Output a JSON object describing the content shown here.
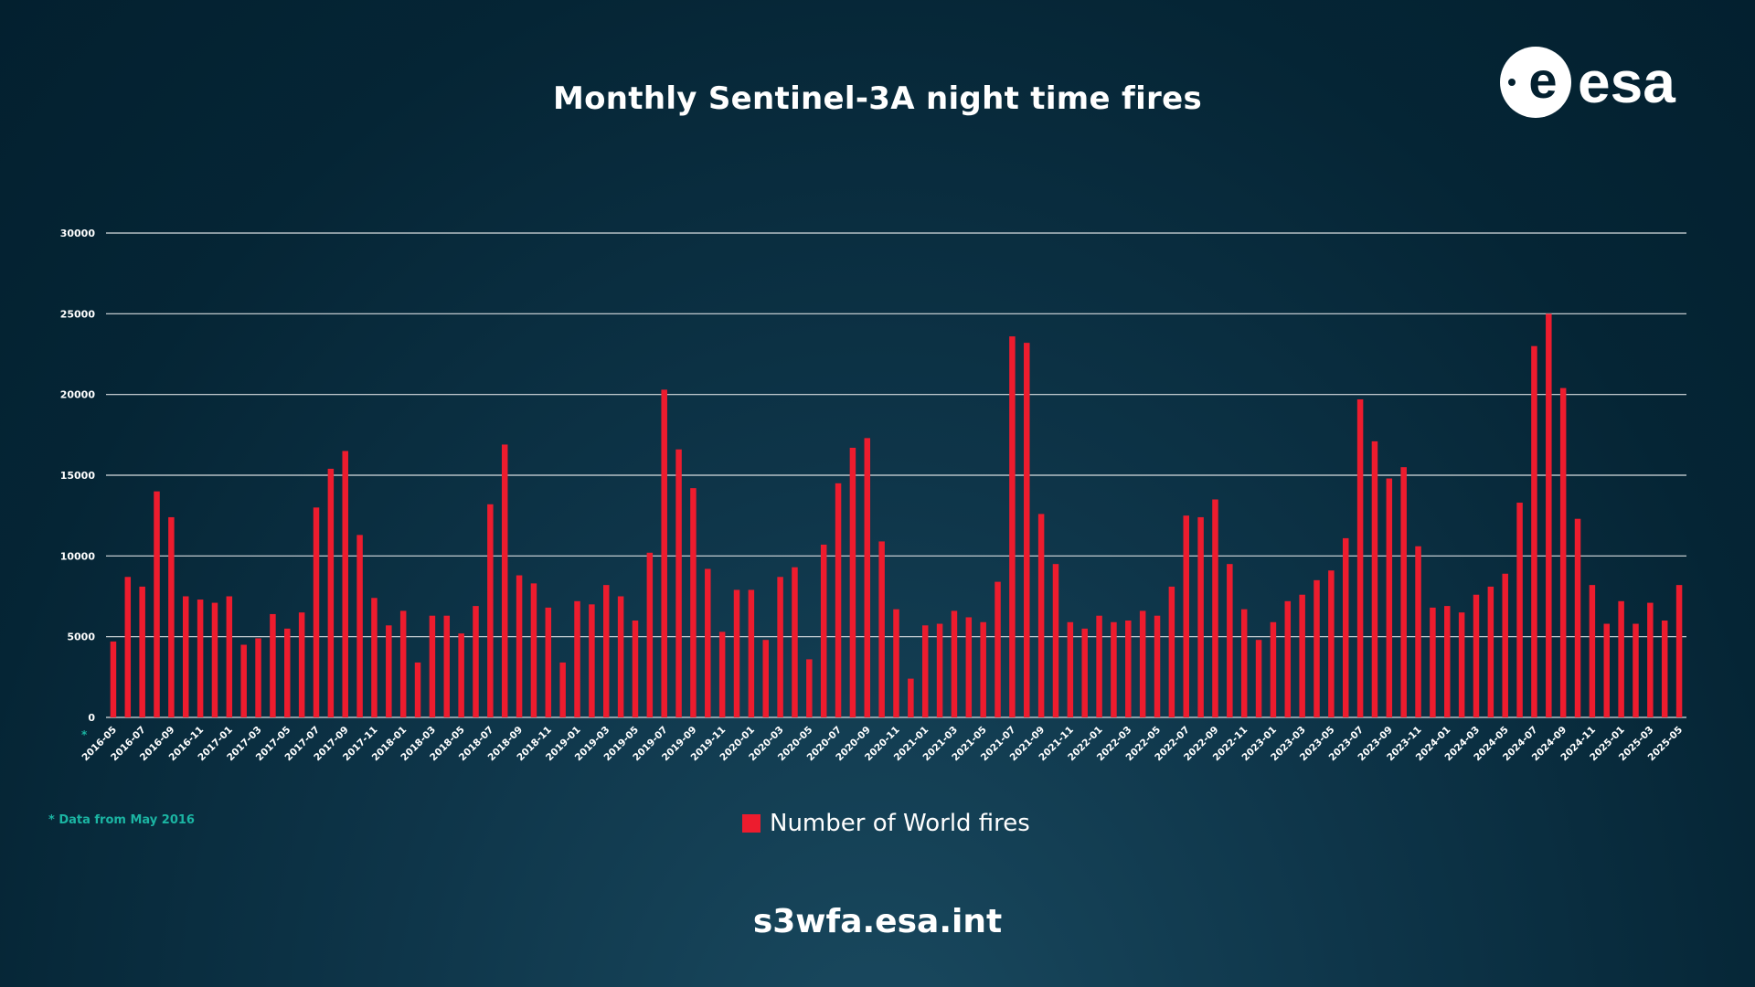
{
  "title": "Monthly Sentinel-3A night time fires",
  "logo": {
    "text": "esa"
  },
  "note": "* Data from May 2016",
  "footer": "s3wfa.esa.int",
  "colors": {
    "bar": "#ed1c2e",
    "grid": "#d8dde0",
    "note": "#1bb5a3",
    "background": "#052535"
  },
  "chart_data": {
    "type": "bar",
    "title": "Monthly Sentinel-3A night time fires",
    "xlabel": "",
    "ylabel": "",
    "ylim": [
      0,
      30000
    ],
    "yticks": [
      0,
      5000,
      10000,
      15000,
      20000,
      25000,
      30000
    ],
    "grid": true,
    "legend_position": "bottom-center",
    "categories": [
      "2016-05",
      "2016-06",
      "2016-07",
      "2016-08",
      "2016-09",
      "2016-10",
      "2016-11",
      "2016-12",
      "2017-01",
      "2017-02",
      "2017-03",
      "2017-04",
      "2017-05",
      "2017-06",
      "2017-07",
      "2017-08",
      "2017-09",
      "2017-10",
      "2017-11",
      "2017-12",
      "2018-01",
      "2018-02",
      "2018-03",
      "2018-04",
      "2018-05",
      "2018-06",
      "2018-07",
      "2018-08",
      "2018-09",
      "2018-10",
      "2018-11",
      "2018-12",
      "2019-01",
      "2019-02",
      "2019-03",
      "2019-04",
      "2019-05",
      "2019-06",
      "2019-07",
      "2019-08",
      "2019-09",
      "2019-10",
      "2019-11",
      "2019-12",
      "2020-01",
      "2020-02",
      "2020-03",
      "2020-04",
      "2020-05",
      "2020-06",
      "2020-07",
      "2020-08",
      "2020-09",
      "2020-10",
      "2020-11",
      "2020-12",
      "2021-01",
      "2021-02",
      "2021-03",
      "2021-04",
      "2021-05",
      "2021-06",
      "2021-07",
      "2021-08",
      "2021-09",
      "2021-10",
      "2021-11",
      "2021-12",
      "2022-01",
      "2022-02",
      "2022-03",
      "2022-04",
      "2022-05",
      "2022-06",
      "2022-07",
      "2022-08",
      "2022-09",
      "2022-10",
      "2022-11",
      "2022-12",
      "2023-01",
      "2023-02",
      "2023-03",
      "2023-04",
      "2023-05",
      "2023-06",
      "2023-07",
      "2023-08",
      "2023-09",
      "2023-10",
      "2023-11",
      "2023-12",
      "2024-01",
      "2024-02",
      "2024-03",
      "2024-04",
      "2024-05",
      "2024-06",
      "2024-07",
      "2024-08",
      "2024-09",
      "2024-10",
      "2024-11",
      "2024-12",
      "2025-01",
      "2025-02",
      "2025-03",
      "2025-04",
      "2025-05"
    ],
    "tick_labels": [
      "2016-05",
      "2016-07",
      "2016-09",
      "2016-11",
      "2017-01",
      "2017-03",
      "2017-05",
      "2017-07",
      "2017-09",
      "2017-11",
      "2018-01",
      "2018-03",
      "2018-05",
      "2018-07",
      "2018-09",
      "2018-11",
      "2019-01",
      "2019-03",
      "2019-05",
      "2019-07",
      "2019-09",
      "2019-11",
      "2020-01",
      "2020-03",
      "2020-05",
      "2020-07",
      "2020-09",
      "2020-11",
      "2021-01",
      "2021-03",
      "2021-05",
      "2021-07",
      "2021-09",
      "2021-11",
      "2022-01",
      "2022-03",
      "2022-05",
      "2022-07",
      "2022-09",
      "2022-11",
      "2023-01",
      "2023-03",
      "2023-05",
      "2023-07",
      "2023-09",
      "2023-11",
      "2024-01",
      "2024-03",
      "2024-05",
      "2024-07",
      "2024-09",
      "2024-11",
      "2025-01",
      "2025-03",
      "2025-05"
    ],
    "series": [
      {
        "name": "Number of World fires",
        "values": [
          4700,
          8700,
          8100,
          14000,
          12400,
          7500,
          7300,
          7100,
          7500,
          4500,
          4900,
          6400,
          5500,
          6500,
          13000,
          15400,
          16500,
          11300,
          7400,
          5700,
          6600,
          3400,
          6300,
          6300,
          5200,
          6900,
          13200,
          16900,
          8800,
          8300,
          6800,
          3400,
          7200,
          7000,
          8200,
          7500,
          6000,
          10200,
          20300,
          16600,
          14200,
          9200,
          5300,
          7900,
          7900,
          4800,
          8700,
          9300,
          3600,
          10700,
          14500,
          16700,
          17300,
          10900,
          6700,
          2400,
          5700,
          5800,
          6600,
          6200,
          5900,
          8400,
          23600,
          23200,
          12600,
          9500,
          5900,
          5500,
          6300,
          5900,
          6000,
          6600,
          6300,
          8100,
          12500,
          12400,
          13500,
          9500,
          6700,
          4800,
          5900,
          7200,
          7600,
          8500,
          9100,
          11100,
          19700,
          17100,
          14800,
          15500,
          10600,
          6800,
          6900,
          6500,
          7600,
          8100,
          8900,
          13300,
          23000,
          25000,
          20400,
          12300,
          8200,
          5800,
          7200,
          5800,
          7100,
          6000,
          8200
        ]
      }
    ]
  }
}
